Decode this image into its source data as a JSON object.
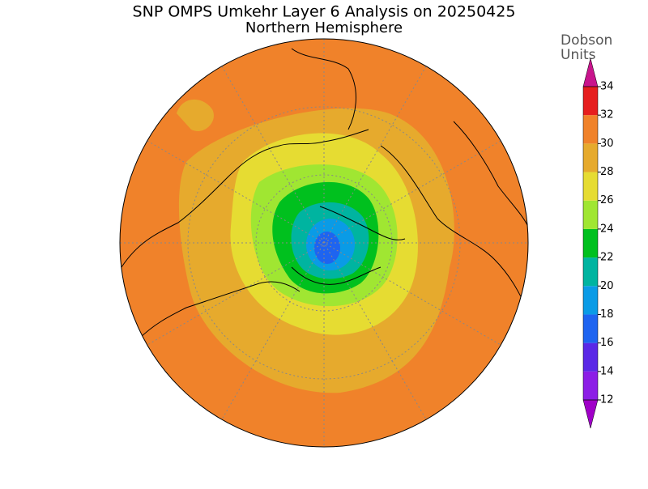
{
  "header": {
    "title": "SNP OMPS Umkehr Layer 6 Analysis on 20250425",
    "subtitle": "Northern Hemisphere"
  },
  "colorbar": {
    "label": [
      "Dobson",
      "Units"
    ],
    "ticks": [
      12,
      14,
      16,
      18,
      20,
      22,
      24,
      26,
      28,
      30,
      32,
      34
    ],
    "colors": [
      "#8c1ee6",
      "#5a28e6",
      "#1e64f0",
      "#0a9be6",
      "#00b4a0",
      "#00c01e",
      "#a0e632",
      "#e6dc32",
      "#e6aa2d",
      "#f0822a",
      "#e61e1e"
    ],
    "under_color": "#a000c8",
    "over_color": "#c8148c"
  }
}
